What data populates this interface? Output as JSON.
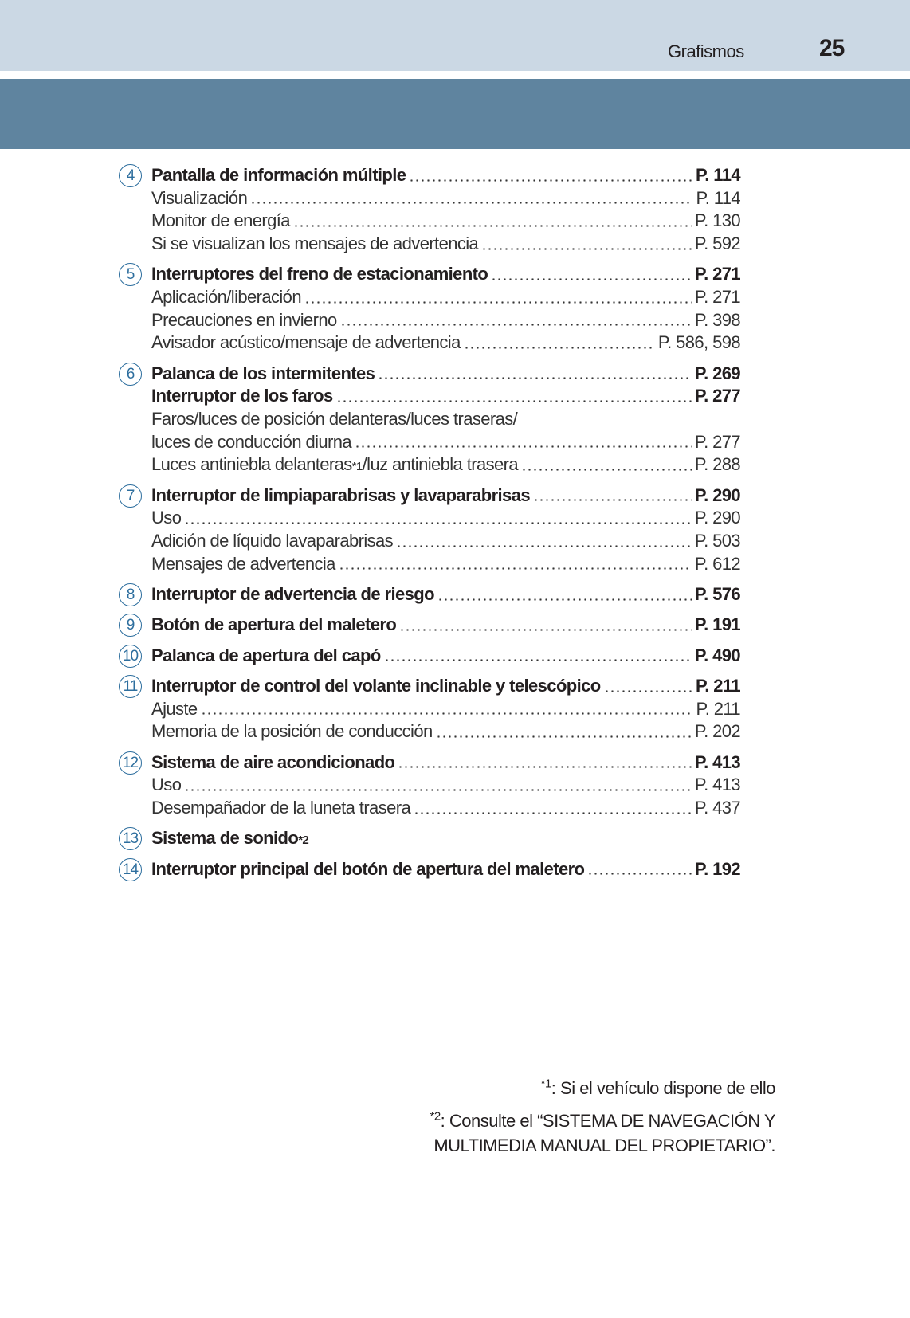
{
  "header": {
    "section": "Grafismos",
    "page_number": "25"
  },
  "colors": {
    "header_light": "#cbd8e4",
    "header_dark": "#5f849f",
    "circle": "#2d6e9e"
  },
  "groups": [
    {
      "num": "4",
      "rows": [
        {
          "t": "Pantalla de información múltiple",
          "r": "P. 114",
          "m": 1
        },
        {
          "t": "Visualización",
          "r": "P. 114"
        },
        {
          "t": "Monitor de energía",
          "r": "P. 130"
        },
        {
          "t": "Si se visualizan los mensajes de advertencia",
          "r": "P. 592"
        }
      ]
    },
    {
      "num": "5",
      "rows": [
        {
          "t": "Interruptores del freno de estacionamiento",
          "r": "P. 271",
          "m": 1
        },
        {
          "t": "Aplicación/liberación",
          "r": "P. 271"
        },
        {
          "t": "Precauciones en invierno",
          "r": "P. 398"
        },
        {
          "t": "Avisador acústico/mensaje de advertencia",
          "r": "P. 586, 598"
        }
      ]
    },
    {
      "num": "6",
      "rows": [
        {
          "t": "Palanca de los intermitentes",
          "r": "P. 269",
          "m": 1
        },
        {
          "t": "Interruptor de los faros",
          "r": "P. 277",
          "m": 1
        },
        {
          "t": "Faros/luces de posición delanteras/luces traseras/",
          "r": ""
        },
        {
          "t": "luces de conducción diurna",
          "r": "P. 277"
        },
        {
          "t": "Luces antiniebla delanteras",
          "sup": "*1",
          "t2": "/luz antiniebla trasera",
          "r": "P. 288"
        }
      ]
    },
    {
      "num": "7",
      "rows": [
        {
          "t": "Interruptor de limpiaparabrisas y lavaparabrisas",
          "r": "P. 290",
          "m": 1
        },
        {
          "t": "Uso",
          "r": "P. 290"
        },
        {
          "t": "Adición de líquido lavaparabrisas",
          "r": "P. 503"
        },
        {
          "t": "Mensajes de advertencia",
          "r": "P. 612"
        }
      ]
    },
    {
      "num": "8",
      "rows": [
        {
          "t": "Interruptor de advertencia de riesgo",
          "r": "P. 576",
          "m": 1
        }
      ]
    },
    {
      "num": "9",
      "rows": [
        {
          "t": "Botón de apertura del maletero",
          "r": "P. 191",
          "m": 1
        }
      ]
    },
    {
      "num": "10",
      "rows": [
        {
          "t": "Palanca de apertura del capó",
          "r": "P. 490",
          "m": 1
        }
      ]
    },
    {
      "num": "11",
      "rows": [
        {
          "t": "Interruptor de control del volante inclinable y telescópico",
          "r": "P. 211",
          "m": 1
        },
        {
          "t": "Ajuste",
          "r": "P. 211"
        },
        {
          "t": "Memoria de la posición de conducción",
          "r": "P. 202"
        }
      ]
    },
    {
      "num": "12",
      "rows": [
        {
          "t": "Sistema de aire acondicionado",
          "r": "P. 413",
          "m": 1
        },
        {
          "t": "Uso",
          "r": "P. 413"
        },
        {
          "t": "Desempañador de la luneta trasera",
          "r": "P. 437"
        }
      ]
    },
    {
      "num": "13",
      "rows": [
        {
          "t": "Sistema de sonido",
          "sup": "*2",
          "r": "",
          "m": 1
        }
      ]
    },
    {
      "num": "14",
      "rows": [
        {
          "t": "Interruptor principal del botón de apertura del maletero",
          "r": "P. 192",
          "m": 1
        }
      ]
    }
  ],
  "footnotes": [
    {
      "mark": "*1",
      "text": ": Si el vehículo dispone de ello"
    },
    {
      "mark": "*2",
      "text": ": Consulte el “SISTEMA DE NAVEGACIÓN Y",
      "text2": "MULTIMEDIA MANUAL DEL PROPIETARIO”."
    }
  ]
}
